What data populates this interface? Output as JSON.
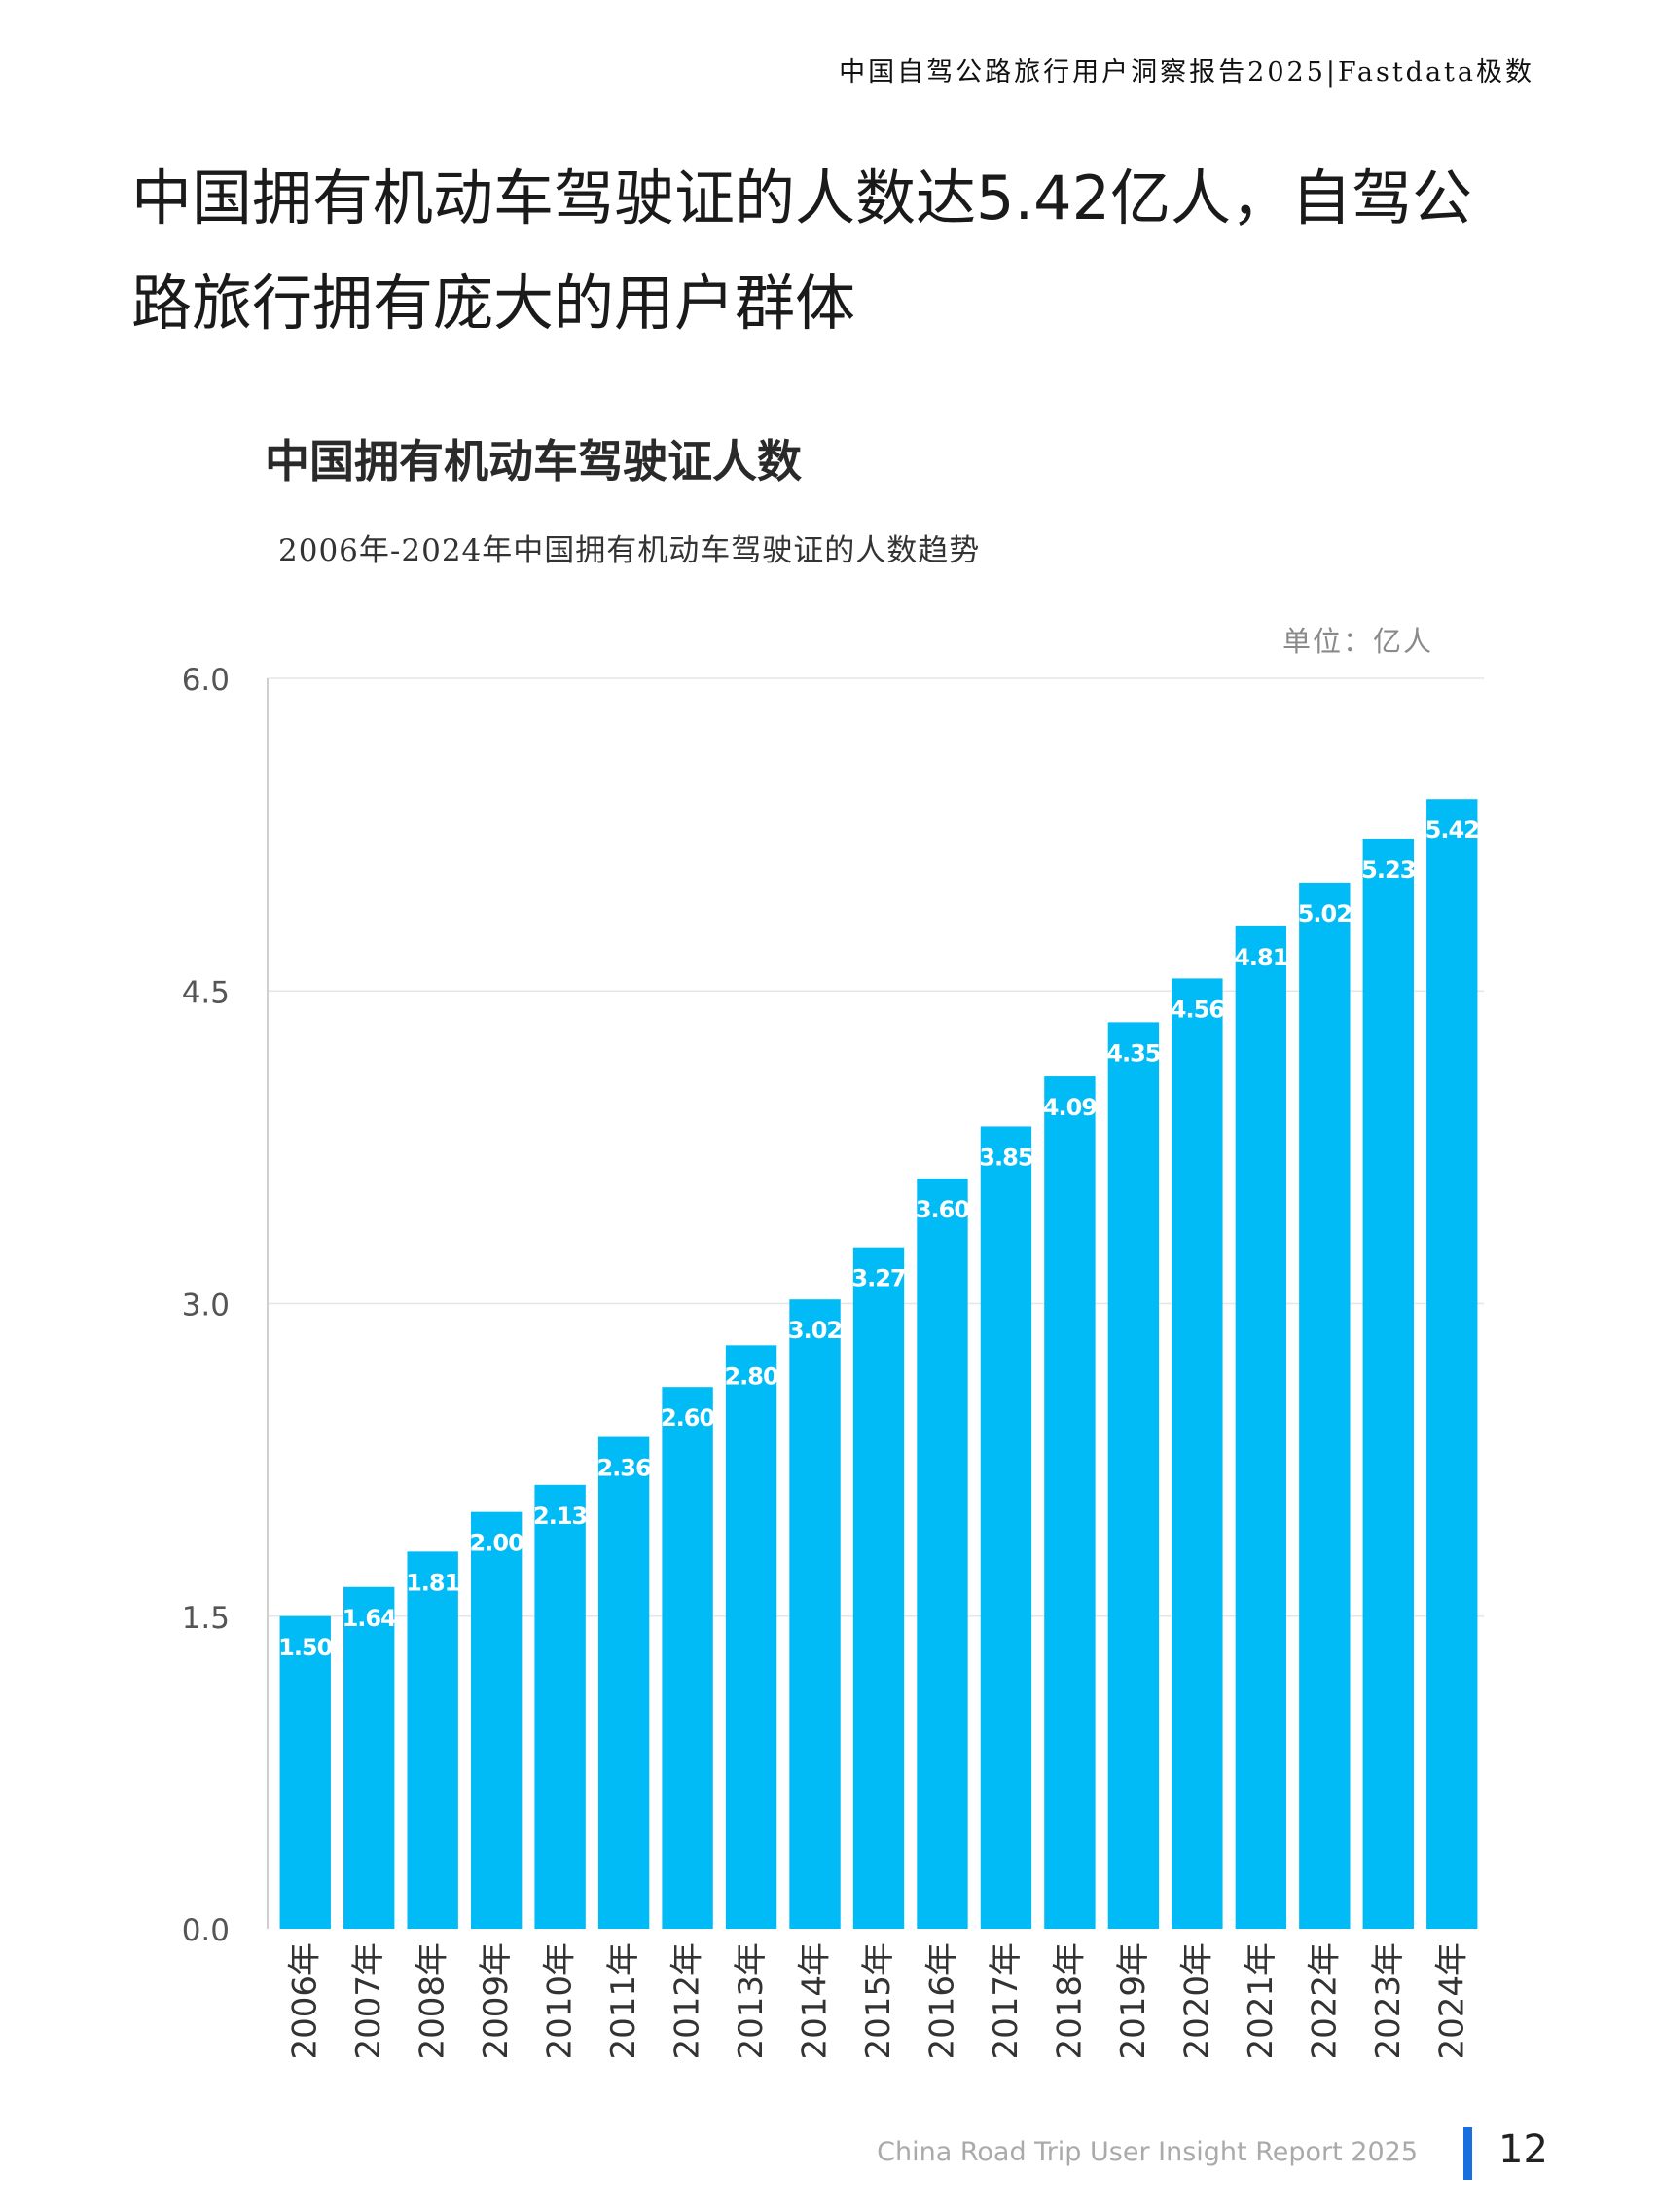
{
  "header": {
    "report_title": "中国自驾公路旅行用户洞察报告2025|Fastdata极数"
  },
  "headline": {
    "line1": "中国拥有机动车驾驶证的人数达5.42亿人，自驾公",
    "line2": "路旅行拥有庞大的用户群体"
  },
  "chart_data": {
    "type": "bar",
    "title": "中国拥有机动车驾驶证人数",
    "subtitle": "2006年-2024年中国拥有机动车驾驶证的人数趋势",
    "unit": "单位：亿人",
    "categories": [
      "2006年",
      "2007年",
      "2008年",
      "2009年",
      "2010年",
      "2011年",
      "2012年",
      "2013年",
      "2014年",
      "2015年",
      "2016年",
      "2017年",
      "2018年",
      "2019年",
      "2020年",
      "2021年",
      "2022年",
      "2023年",
      "2024年"
    ],
    "values": [
      1.5,
      1.64,
      1.81,
      2.0,
      2.13,
      2.36,
      2.6,
      2.8,
      3.02,
      3.27,
      3.6,
      3.85,
      4.09,
      4.35,
      4.56,
      4.81,
      5.02,
      5.23,
      5.42
    ],
    "value_labels": [
      "1.50",
      "1.64",
      "1.81",
      "2.00",
      "2.13",
      "2.36",
      "2.60",
      "2.80",
      "3.02",
      "3.27",
      "3.60",
      "3.85",
      "4.09",
      "4.35",
      "4.56",
      "4.81",
      "5.02",
      "5.23",
      "5.42"
    ],
    "yticks": [
      "0.0",
      "1.5",
      "3.0",
      "4.5",
      "6.0"
    ],
    "ylim": [
      0,
      6
    ],
    "grid": true,
    "bar_color": "#00BBF6"
  },
  "footer": {
    "report_en": "China Road Trip User Insight Report 2025",
    "page_number": "12",
    "accent_color": "#1a6fe0"
  }
}
